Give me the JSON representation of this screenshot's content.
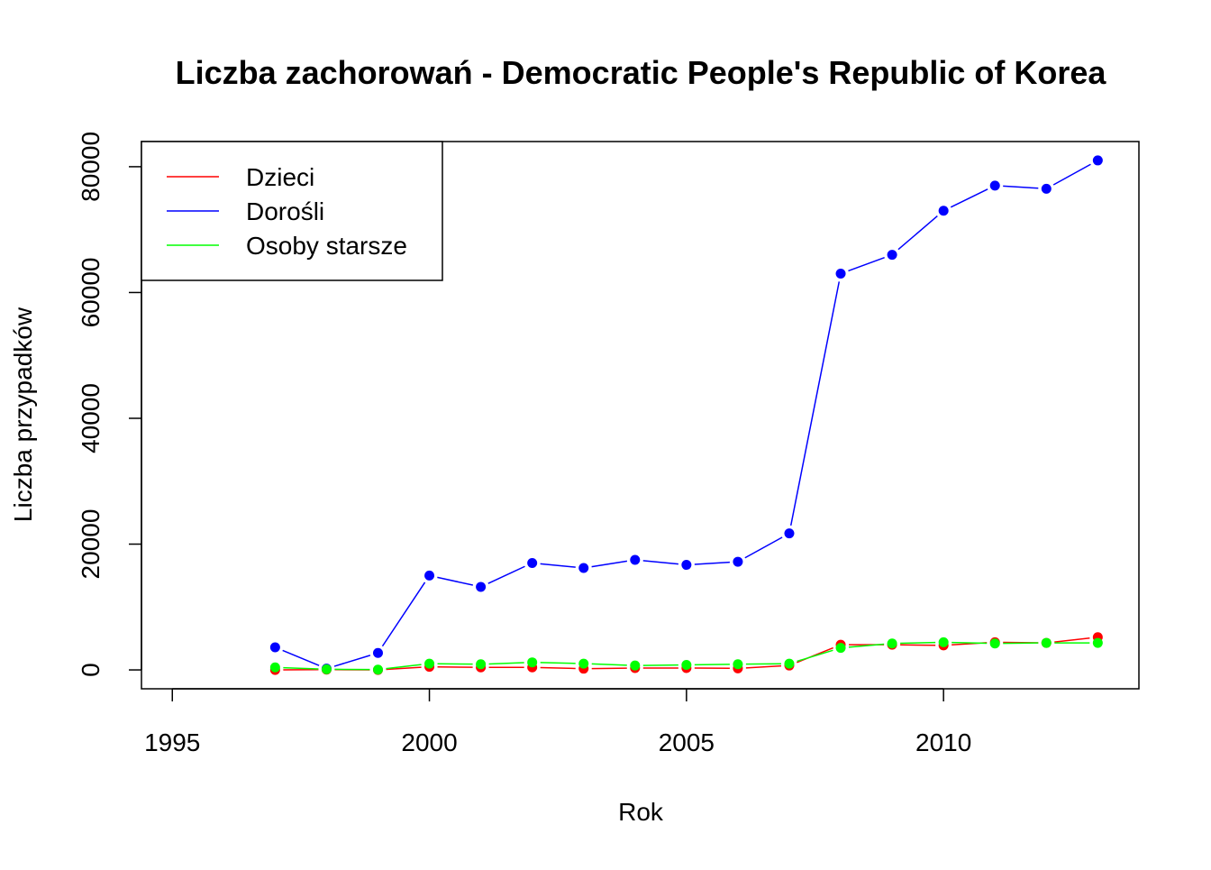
{
  "chart_data": {
    "type": "line",
    "title": "Liczba zachorowań -  Democratic People's Republic of Korea",
    "xlabel": "Rok",
    "ylabel": "Liczba przypadków",
    "xlim": [
      1994.4,
      2013.8
    ],
    "ylim": [
      -3000,
      84000
    ],
    "x_ticks": [
      1995,
      2000,
      2005,
      2010
    ],
    "y_ticks": [
      0,
      20000,
      40000,
      60000,
      80000
    ],
    "grid": false,
    "legend_position": "top-left",
    "x": [
      1997,
      1998,
      1999,
      2000,
      2001,
      2002,
      2003,
      2004,
      2005,
      2006,
      2007,
      2008,
      2009,
      2010,
      2011,
      2012,
      2013
    ],
    "series": [
      {
        "name": "Dzieci",
        "color": "#ff0000",
        "values": [
          0,
          50,
          0,
          500,
          400,
          400,
          200,
          300,
          300,
          250,
          700,
          4000,
          4000,
          3900,
          4400,
          4300,
          5200
        ]
      },
      {
        "name": "Dorośli",
        "color": "#0000ff",
        "values": [
          3600,
          200,
          2700,
          15000,
          13200,
          17000,
          16200,
          17500,
          16700,
          17200,
          21700,
          63000,
          66000,
          73000,
          77000,
          76500,
          81000
        ]
      },
      {
        "name": "Osoby starsze",
        "color": "#00ff00",
        "values": [
          400,
          100,
          50,
          1000,
          900,
          1200,
          1000,
          700,
          800,
          900,
          1000,
          3500,
          4200,
          4400,
          4200,
          4300,
          4300
        ]
      }
    ]
  }
}
